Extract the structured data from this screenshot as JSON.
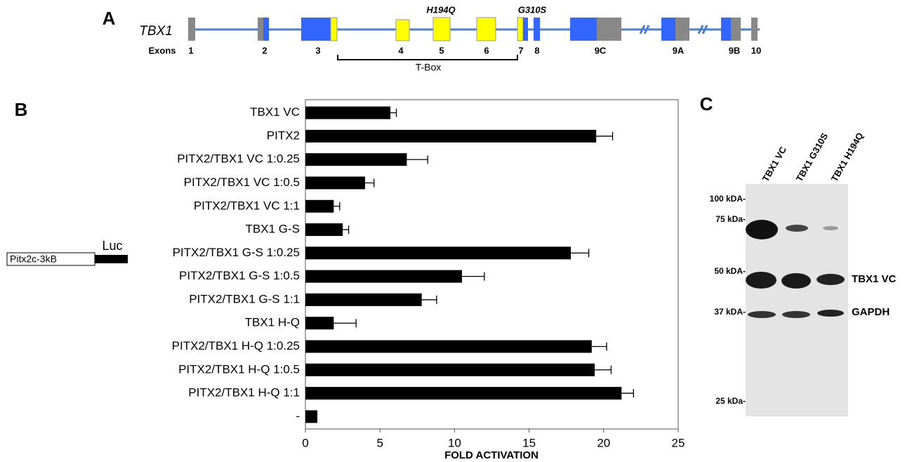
{
  "panel_a": {
    "label": "A",
    "gene": "TBX1",
    "exons_label": "Exons",
    "exons": [
      "1",
      "2",
      "3",
      "4",
      "5",
      "6",
      "7",
      "8",
      "9C",
      "9A",
      "9B",
      "10"
    ],
    "mutations": [
      "H194Q",
      "G310S"
    ],
    "domain": "T-Box"
  },
  "chart_data": {
    "type": "hbar",
    "panel_label": "B",
    "xlabel": "FOLD ACTIVATION",
    "categories": [
      "TBX1 VC",
      "PITX2",
      "PITX2/TBX1 VC 1:0.25",
      "PITX2/TBX1 VC 1:0.5",
      "PITX2/TBX1 VC 1:1",
      "TBX1 G-S",
      "PITX2/TBX1 G-S 1:0.25",
      "PITX2/TBX1 G-S 1:0.5",
      "PITX2/TBX1 G-S 1:1",
      "TBX1 H-Q",
      "PITX2/TBX1 H-Q 1:0.25",
      "PITX2/TBX1 H-Q 1:0.5",
      "PITX2/TBX1 H-Q 1:1",
      "-"
    ],
    "values": [
      5.7,
      19.5,
      6.8,
      4.0,
      1.9,
      2.5,
      17.8,
      10.5,
      7.8,
      1.9,
      19.2,
      19.4,
      21.2,
      0.8
    ],
    "errors": [
      0.4,
      1.1,
      1.4,
      0.6,
      0.4,
      0.4,
      1.2,
      1.5,
      1.0,
      1.5,
      1.0,
      1.1,
      0.8,
      null
    ],
    "color": "#000000",
    "xlim": [
      0,
      25
    ],
    "xticks": [
      0,
      5,
      10,
      15,
      20,
      25
    ],
    "construct": {
      "promoter": "Pitx2c-3kB",
      "reporter": "Luc"
    }
  },
  "panel_c": {
    "label": "C",
    "lanes": [
      "TBX1 VC",
      "TBX1 G310S",
      "TBX1 H194Q"
    ],
    "markers": [
      "100 kDA-",
      "75 kDa-",
      "50 kDA-",
      "37 kDA-",
      "25 kDa-"
    ],
    "bands": [
      "TBX1 VC",
      "GAPDH"
    ]
  }
}
